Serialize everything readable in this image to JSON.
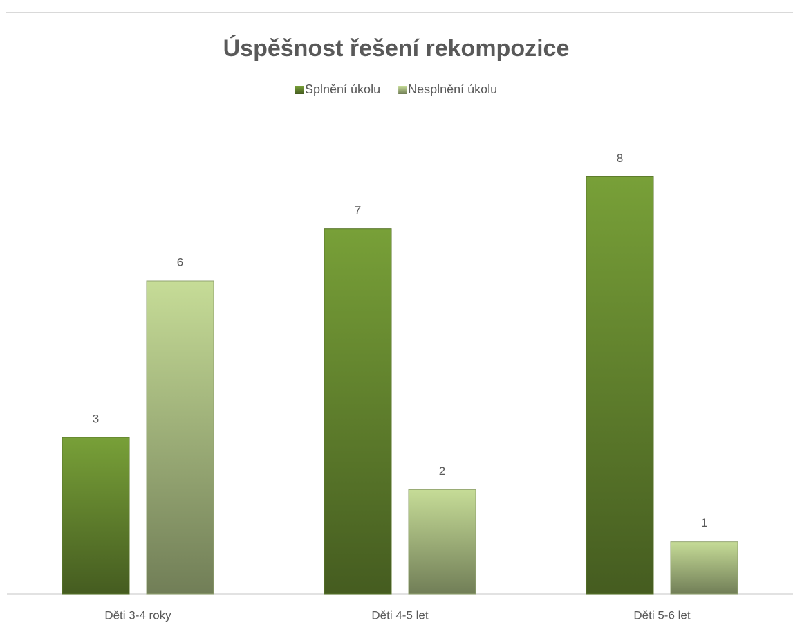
{
  "chart_data": {
    "type": "bar",
    "title": "Úspěšnost řešení rekompozice",
    "categories": [
      "Děti 3-4 roky",
      "Děti 4-5 let",
      "Děti 5-6 let"
    ],
    "series": [
      {
        "name": "Splnění úkolu",
        "color": "#6f9434",
        "values": [
          3,
          7,
          8
        ]
      },
      {
        "name": "Nesplnění úkolu",
        "color": "#b7cc8c",
        "values": [
          6,
          2,
          1
        ]
      }
    ],
    "ylim": [
      0,
      9
    ],
    "legend": "top"
  }
}
